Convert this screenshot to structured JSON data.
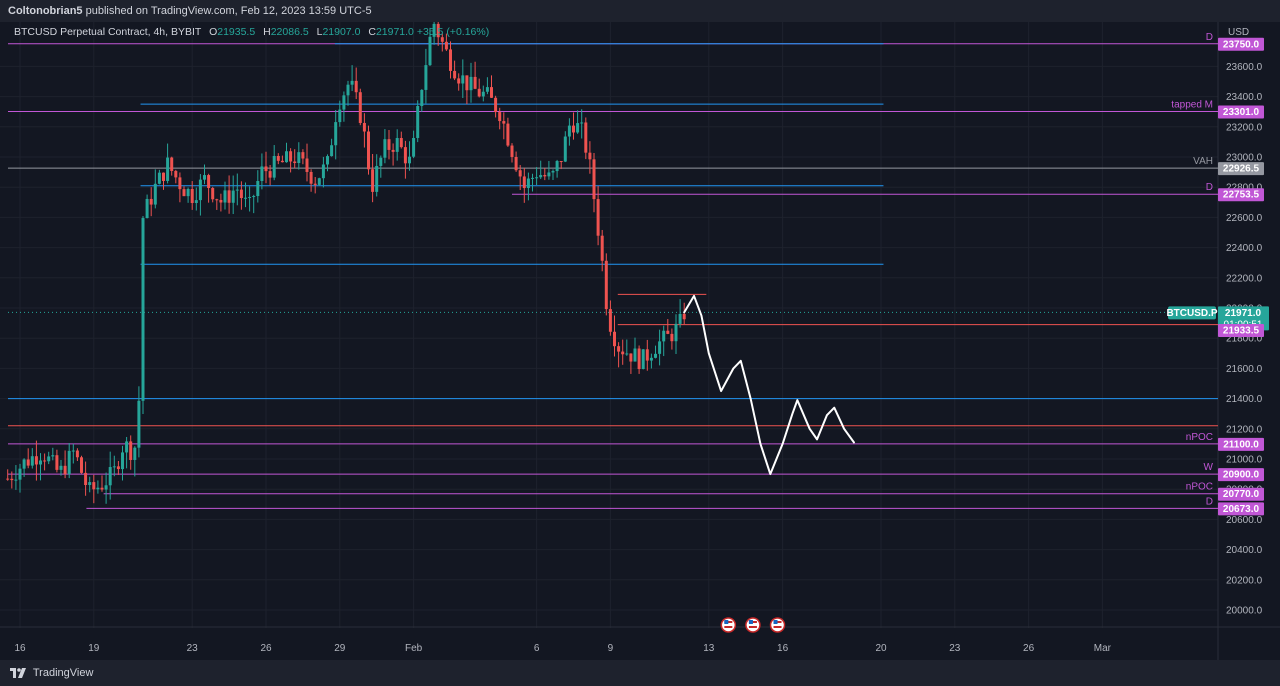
{
  "header": {
    "publisher": "Coltonobrian5",
    "published_text": "published on TradingView.com, Feb 12, 2023 13:59 UTC-5"
  },
  "legend": {
    "symbol": "BTCUSD Perpetual Contract, 4h, BYBIT",
    "open_label": "O",
    "open": "21935.5",
    "high_label": "H",
    "high": "22086.5",
    "low_label": "L",
    "low": "21907.0",
    "close_label": "C",
    "close": "21971.0",
    "change": "+35.5 (+0.16%)"
  },
  "footer": {
    "brand": "TradingView"
  },
  "colors": {
    "background": "#131722",
    "up": "#26a69a",
    "down": "#ef5350",
    "violet": "#c157d6",
    "blue": "#2196f3",
    "drawing": "#ffffff"
  },
  "chart_data": {
    "type": "candlestick",
    "currency": "USD",
    "ylim": [
      19950,
      24050
    ],
    "y_ticks": [
      20000,
      20200,
      20400,
      20600,
      20800,
      21000,
      21200,
      21400,
      21600,
      21800,
      22000,
      22200,
      22400,
      22600,
      22800,
      23000,
      23200,
      23400,
      23600
    ],
    "x_ticks": [
      {
        "label": "16",
        "day": 16
      },
      {
        "label": "19",
        "day": 19
      },
      {
        "label": "23",
        "day": 23
      },
      {
        "label": "26",
        "day": 26
      },
      {
        "label": "29",
        "day": 29
      },
      {
        "label": "Feb",
        "day": 32
      },
      {
        "label": "6",
        "day": 37
      },
      {
        "label": "9",
        "day": 40
      },
      {
        "label": "13",
        "day": 44
      },
      {
        "label": "16",
        "day": 47
      },
      {
        "label": "20",
        "day": 51
      },
      {
        "label": "23",
        "day": 54
      },
      {
        "label": "26",
        "day": 57
      },
      {
        "label": "Mar",
        "day": 60
      }
    ],
    "price_path": [
      [
        15.5,
        20870
      ],
      [
        16.2,
        20980
      ],
      [
        16.9,
        21050
      ],
      [
        17.6,
        20900
      ],
      [
        18.2,
        21050
      ],
      [
        18.8,
        20780
      ],
      [
        19.3,
        20830
      ],
      [
        19.8,
        20900
      ],
      [
        20.2,
        21100
      ],
      [
        20.6,
        21050
      ],
      [
        20.8,
        21150
      ],
      [
        21.0,
        22600
      ],
      [
        21.5,
        22800
      ],
      [
        22.0,
        22950
      ],
      [
        22.6,
        22800
      ],
      [
        23.0,
        22750
      ],
      [
        23.5,
        22850
      ],
      [
        24.2,
        22700
      ],
      [
        24.8,
        22800
      ],
      [
        25.3,
        22650
      ],
      [
        25.8,
        22900
      ],
      [
        26.5,
        22950
      ],
      [
        27.2,
        23000
      ],
      [
        28.0,
        22850
      ],
      [
        28.5,
        22950
      ],
      [
        28.9,
        23350
      ],
      [
        29.4,
        23500
      ],
      [
        29.9,
        23250
      ],
      [
        30.3,
        22800
      ],
      [
        30.8,
        23050
      ],
      [
        31.3,
        23100
      ],
      [
        31.9,
        22950
      ],
      [
        32.3,
        23450
      ],
      [
        32.8,
        23900
      ],
      [
        33.3,
        23700
      ],
      [
        33.8,
        23550
      ],
      [
        34.4,
        23450
      ],
      [
        35.0,
        23400
      ],
      [
        35.5,
        23300
      ],
      [
        36.0,
        23050
      ],
      [
        36.5,
        22800
      ],
      [
        37.0,
        22900
      ],
      [
        37.6,
        22850
      ],
      [
        38.0,
        23000
      ],
      [
        38.4,
        23250
      ],
      [
        38.9,
        23150
      ],
      [
        39.2,
        22900
      ],
      [
        39.6,
        22400
      ],
      [
        39.9,
        21950
      ],
      [
        40.3,
        21750
      ],
      [
        40.8,
        21700
      ],
      [
        41.3,
        21650
      ],
      [
        41.8,
        21750
      ],
      [
        42.3,
        21800
      ],
      [
        42.8,
        21880
      ],
      [
        43.0,
        21971
      ]
    ],
    "horizontal_levels": [
      {
        "price": 23750,
        "label": "D",
        "badge": "23750.0",
        "color": "#c157d6",
        "x_from_day": 14
      },
      {
        "price": 23301,
        "label": "tapped M",
        "badge": "23301.0",
        "color": "#c157d6",
        "x_from_day": 14
      },
      {
        "price": 22926.5,
        "label": "VAH",
        "badge": "22926.5",
        "color": "#9598a1",
        "x_from_day": 14
      },
      {
        "price": 22753.5,
        "label": "D",
        "badge": "22753.5",
        "color": "#c157d6",
        "x_from_day": 36
      },
      {
        "price": 21100,
        "label": "nPOC",
        "badge": "21100.0",
        "color": "#c157d6",
        "x_from_day": 14
      },
      {
        "price": 20900,
        "label": "W",
        "badge": "20900.0",
        "color": "#c157d6",
        "x_from_day": 14
      },
      {
        "price": 20770,
        "label": "nPOC",
        "badge": "20770.0",
        "color": "#c157d6",
        "x_from_day": 19.4
      },
      {
        "price": 20673,
        "label": "D",
        "badge": "20673.0",
        "color": "#c157d6",
        "x_from_day": 18.7
      }
    ],
    "blue_levels": [
      {
        "price": 23750,
        "from_day": 28.8,
        "to_day": 51.1
      },
      {
        "price": 23350,
        "from_day": 20.9,
        "to_day": 51.1
      },
      {
        "price": 22810,
        "from_day": 20.9,
        "to_day": 51.1
      },
      {
        "price": 22290,
        "from_day": 20.9,
        "to_day": 51.1
      },
      {
        "price": 21400,
        "from_day": 14,
        "to_day": 65
      }
    ],
    "red_levels": [
      {
        "price": 21220,
        "from_day": 14,
        "to_day": 65
      },
      {
        "price": 22090,
        "from_day": 40.3,
        "to_day": 43.9
      },
      {
        "price": 21890,
        "from_day": 40.3,
        "to_day": 65
      }
    ],
    "current_price": {
      "symbol_label": "BTCUSD.P",
      "price": "21971.0",
      "countdown": "01:00:51"
    },
    "extra_badge": {
      "price": 21933.5,
      "label": "21933.5"
    },
    "projection_path": [
      [
        43.0,
        21971
      ],
      [
        43.4,
        22080
      ],
      [
        43.7,
        21950
      ],
      [
        44.0,
        21700
      ],
      [
        44.5,
        21450
      ],
      [
        45.0,
        21600
      ],
      [
        45.3,
        21650
      ],
      [
        45.7,
        21400
      ],
      [
        46.1,
        21100
      ],
      [
        46.5,
        20900
      ],
      [
        47.0,
        21100
      ],
      [
        47.4,
        21300
      ],
      [
        47.6,
        21390
      ],
      [
        48.1,
        21200
      ],
      [
        48.4,
        21130
      ],
      [
        48.8,
        21290
      ],
      [
        49.1,
        21340
      ],
      [
        49.5,
        21200
      ],
      [
        49.9,
        21110
      ]
    ],
    "event_markers": [
      {
        "day": 45.2
      },
      {
        "day": 46.2
      },
      {
        "day": 47.2
      }
    ]
  }
}
